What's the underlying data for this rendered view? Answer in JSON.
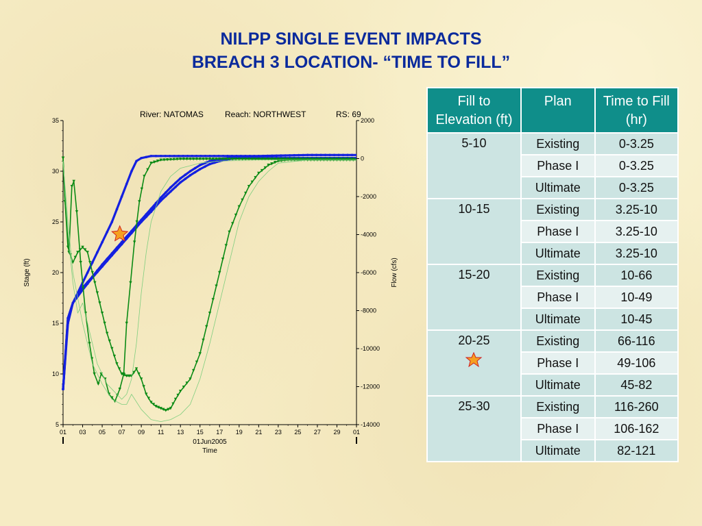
{
  "slide": {
    "title_line1": "NILPP SINGLE EVENT IMPACTS",
    "title_line2": "BREACH 3 LOCATION- “TIME TO FILL”"
  },
  "chart_data": {
    "type": "line",
    "header": {
      "river": "River: NATOMAS",
      "reach": "Reach: NORTHWEST",
      "rs": "RS: 69"
    },
    "xlabel_line1": "01Jun2005",
    "xlabel_line2": "Time",
    "ylabel_left": "Stage (ft)",
    "ylabel_right": "Flow (cfs)",
    "x_ticks": [
      "01",
      "03",
      "05",
      "07",
      "09",
      "11",
      "13",
      "15",
      "17",
      "19",
      "21",
      "23",
      "25",
      "27",
      "29",
      "01"
    ],
    "y_left_ticks": [
      5,
      10,
      15,
      20,
      25,
      30,
      35
    ],
    "y_left_lim": [
      5,
      35
    ],
    "y_right_ticks": [
      2000,
      0,
      -2000,
      -4000,
      -6000,
      -8000,
      -10000,
      -12000,
      -14000
    ],
    "y_right_lim": [
      -14000,
      2000
    ],
    "x_lim": [
      0,
      30
    ],
    "colors": {
      "stage": "#1420e0",
      "flow": "#0a8a14",
      "light_flow": "#7fce7f",
      "star": "#f5a020"
    },
    "series": [
      {
        "axis": "left",
        "style": "stage",
        "values": [
          [
            0,
            8.5
          ],
          [
            0.5,
            15
          ],
          [
            1,
            17
          ],
          [
            2,
            19
          ],
          [
            3,
            21
          ],
          [
            4,
            23
          ],
          [
            5,
            25
          ],
          [
            6,
            27.5
          ],
          [
            7,
            30
          ],
          [
            7.5,
            31
          ],
          [
            8,
            31.3
          ],
          [
            9,
            31.5
          ],
          [
            10,
            31.5
          ],
          [
            15,
            31.5
          ],
          [
            20,
            31.5
          ],
          [
            25,
            31.6
          ],
          [
            30,
            31.6
          ]
        ]
      },
      {
        "axis": "left",
        "style": "stage",
        "values": [
          [
            0,
            8.5
          ],
          [
            0.5,
            15.5
          ],
          [
            1,
            17
          ],
          [
            2,
            18.5
          ],
          [
            3,
            19.6
          ],
          [
            4,
            20.8
          ],
          [
            5,
            21.9
          ],
          [
            6,
            23
          ],
          [
            7,
            24.1
          ],
          [
            8,
            25.2
          ],
          [
            9,
            26.3
          ],
          [
            10,
            27.4
          ],
          [
            11,
            28.4
          ],
          [
            12,
            29.3
          ],
          [
            13,
            30
          ],
          [
            14,
            30.6
          ],
          [
            15,
            31
          ],
          [
            16,
            31.2
          ],
          [
            17,
            31.3
          ],
          [
            18,
            31.3
          ],
          [
            20,
            31.3
          ],
          [
            25,
            31.3
          ],
          [
            30,
            31.3
          ]
        ]
      },
      {
        "axis": "left",
        "style": "stage",
        "values": [
          [
            0,
            8.5
          ],
          [
            0.5,
            15.5
          ],
          [
            1,
            17
          ],
          [
            2,
            18.3
          ],
          [
            3,
            19.5
          ],
          [
            4,
            20.6
          ],
          [
            5,
            21.7
          ],
          [
            6,
            22.8
          ],
          [
            7,
            23.9
          ],
          [
            8,
            25
          ],
          [
            9,
            26
          ],
          [
            10,
            27.1
          ],
          [
            11,
            28
          ],
          [
            12,
            28.9
          ],
          [
            13,
            29.6
          ],
          [
            14,
            30.2
          ],
          [
            15,
            30.7
          ],
          [
            16,
            31
          ],
          [
            17,
            31.2
          ],
          [
            18,
            31.3
          ],
          [
            20,
            31.3
          ],
          [
            25,
            31.3
          ],
          [
            30,
            31.3
          ]
        ]
      },
      {
        "axis": "left",
        "style": "flow",
        "values": [
          [
            0,
            31.3
          ],
          [
            0.2,
            27
          ],
          [
            0.6,
            22
          ],
          [
            0.9,
            28.5
          ],
          [
            1.1,
            29
          ],
          [
            1.4,
            26
          ],
          [
            1.8,
            21
          ],
          [
            2.3,
            16
          ],
          [
            2.7,
            13
          ],
          [
            3.2,
            10
          ],
          [
            3.6,
            9
          ],
          [
            3.9,
            10
          ],
          [
            4.3,
            9.5
          ],
          [
            4.7,
            8
          ],
          [
            5.3,
            7.3
          ],
          [
            5.8,
            8.5
          ],
          [
            6.2,
            10
          ],
          [
            6.5,
            15
          ],
          [
            6.9,
            19
          ],
          [
            7.3,
            23
          ],
          [
            7.8,
            27
          ],
          [
            8.3,
            29.5
          ],
          [
            9,
            30.8
          ],
          [
            10,
            31.1
          ],
          [
            12,
            31.2
          ],
          [
            15,
            31.2
          ],
          [
            20,
            31.2
          ],
          [
            25,
            31.2
          ],
          [
            30,
            31.2
          ]
        ]
      },
      {
        "axis": "left",
        "style": "flow",
        "values": [
          [
            0,
            31.3
          ],
          [
            0.2,
            27
          ],
          [
            0.5,
            22.5
          ],
          [
            1,
            21
          ],
          [
            1.5,
            22
          ],
          [
            2,
            22.5
          ],
          [
            2.5,
            22
          ],
          [
            3,
            20
          ],
          [
            3.5,
            18
          ],
          [
            4,
            16
          ],
          [
            4.5,
            14
          ],
          [
            5,
            12.5
          ],
          [
            5.5,
            11
          ],
          [
            6,
            10
          ],
          [
            6.5,
            9.8
          ],
          [
            7,
            9.8
          ],
          [
            7.5,
            10.5
          ],
          [
            8,
            9.5
          ],
          [
            8.5,
            8
          ],
          [
            9,
            7.2
          ],
          [
            9.5,
            6.8
          ],
          [
            10,
            6.6
          ],
          [
            10.5,
            6.4
          ],
          [
            11,
            6.6
          ],
          [
            11.5,
            7.5
          ],
          [
            12,
            8.3
          ],
          [
            13,
            9.5
          ],
          [
            14,
            12
          ],
          [
            15,
            16
          ],
          [
            16,
            20
          ],
          [
            17,
            24
          ],
          [
            18,
            26.5
          ],
          [
            19,
            28.5
          ],
          [
            20,
            29.8
          ],
          [
            21,
            30.6
          ],
          [
            22,
            31
          ],
          [
            23,
            31.1
          ],
          [
            25,
            31.1
          ],
          [
            30,
            31.1
          ]
        ]
      },
      {
        "axis": "left",
        "style": "light",
        "values": [
          [
            0,
            31
          ],
          [
            0.5,
            25
          ],
          [
            1,
            20
          ],
          [
            2,
            15
          ],
          [
            3,
            11
          ],
          [
            4,
            9
          ],
          [
            5,
            7.5
          ],
          [
            6,
            7
          ],
          [
            6.5,
            7
          ],
          [
            7,
            8
          ],
          [
            8,
            6.5
          ],
          [
            9,
            5.5
          ],
          [
            10,
            5.3
          ],
          [
            11,
            5.5
          ],
          [
            12,
            6
          ],
          [
            13,
            7
          ],
          [
            14,
            9.5
          ],
          [
            15,
            13
          ],
          [
            16,
            17
          ],
          [
            17,
            21
          ],
          [
            18,
            25
          ],
          [
            19,
            27.5
          ],
          [
            20,
            29
          ],
          [
            21,
            30
          ],
          [
            22,
            30.8
          ],
          [
            25,
            31.1
          ],
          [
            30,
            31.1
          ]
        ]
      },
      {
        "axis": "left",
        "style": "light",
        "values": [
          [
            0,
            31
          ],
          [
            0.5,
            24
          ],
          [
            1,
            19
          ],
          [
            1.5,
            16
          ],
          [
            2,
            17
          ],
          [
            2.5,
            15
          ],
          [
            3,
            13
          ],
          [
            3.5,
            11
          ],
          [
            4,
            10
          ],
          [
            4.5,
            9
          ],
          [
            5,
            8.5
          ],
          [
            5.5,
            8
          ],
          [
            6,
            7.5
          ],
          [
            6.5,
            8
          ],
          [
            7,
            9.5
          ],
          [
            7.5,
            13
          ],
          [
            8,
            18
          ],
          [
            8.5,
            22
          ],
          [
            9,
            25
          ],
          [
            10,
            28
          ],
          [
            11,
            29.5
          ],
          [
            12,
            30.3
          ],
          [
            14,
            30.8
          ],
          [
            16,
            31
          ],
          [
            20,
            31.1
          ],
          [
            30,
            31.1
          ]
        ]
      }
    ],
    "marker": {
      "x": 5.8,
      "y": 23.8
    }
  },
  "table": {
    "headers": [
      "Fill to Elevation (ft)",
      "Plan",
      "Time to Fill (hr)"
    ],
    "groups": [
      {
        "range": "5-10",
        "rows": [
          {
            "plan": "Existing",
            "time": "0-3.25"
          },
          {
            "plan": "Phase I",
            "time": "0-3.25"
          },
          {
            "plan": "Ultimate",
            "time": "0-3.25"
          }
        ]
      },
      {
        "range": "10-15",
        "rows": [
          {
            "plan": "Existing",
            "time": "3.25-10"
          },
          {
            "plan": "Phase I",
            "time": "3.25-10"
          },
          {
            "plan": "Ultimate",
            "time": "3.25-10"
          }
        ]
      },
      {
        "range": "15-20",
        "rows": [
          {
            "plan": "Existing",
            "time": "10-66"
          },
          {
            "plan": "Phase I",
            "time": "10-49"
          },
          {
            "plan": "Ultimate",
            "time": "10-45"
          }
        ]
      },
      {
        "range": "20-25",
        "marker": true,
        "rows": [
          {
            "plan": "Existing",
            "time": "66-116"
          },
          {
            "plan": "Phase I",
            "time": "49-106"
          },
          {
            "plan": "Ultimate",
            "time": "45-82"
          }
        ]
      },
      {
        "range": "25-30",
        "rows": [
          {
            "plan": "Existing",
            "time": "116-260"
          },
          {
            "plan": "Phase I",
            "time": "106-162"
          },
          {
            "plan": "Ultimate",
            "time": "82-121"
          }
        ]
      }
    ]
  }
}
